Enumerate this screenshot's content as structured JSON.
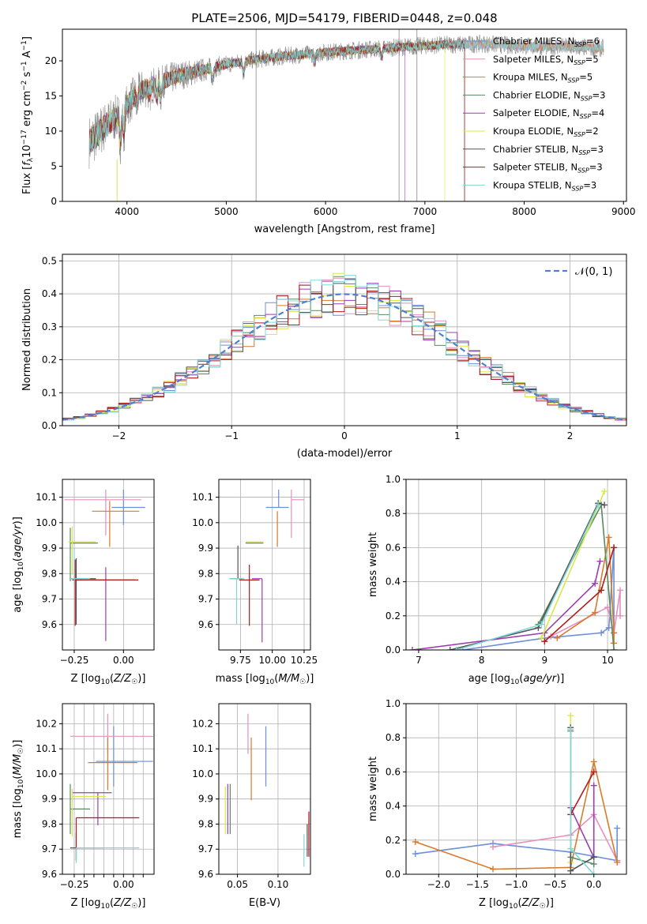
{
  "title": "PLATE=2506, MJD=54179, FIBERID=0448, z=0.048",
  "colors": {
    "Chabrier MILES": "#6b8fd8",
    "Salpeter MILES": "#e48fc0",
    "Kroupa MILES": "#d97a2a",
    "Chabrier ELODIE": "#5a8a5e",
    "Salpeter ELODIE": "#9a3fb0",
    "Kroupa ELODIE": "#d9e84a",
    "Chabrier STELIB": "#555555",
    "Salpeter STELIB": "#b01c1c",
    "Kroupa STELIB": "#7fd8d8"
  },
  "chart_data": [
    {
      "type": "line",
      "id": "spectrum",
      "xlabel": "wavelength [Angstrom, rest frame]",
      "ylabel": "Flux [f_λ10^-17 erg cm^-2 s^-1 A^-1]",
      "xlim": [
        3350,
        9030
      ],
      "ylim": [
        0,
        24.5
      ],
      "xticks": [
        4000,
        5000,
        6000,
        7000,
        8000,
        9000
      ],
      "yticks": [
        0,
        5,
        10,
        15,
        20
      ],
      "grid": false,
      "legend": "right",
      "observed_range": [
        3620,
        8800
      ],
      "series": [
        {
          "name": "Chabrier MILES",
          "nssp": "6",
          "x": [
            3620,
            3700,
            3800,
            3900,
            4000,
            4200,
            4500,
            5000,
            5500,
            6000,
            6500,
            7000,
            7400
          ]
        },
        {
          "name": "Salpeter MILES",
          "nssp": "5"
        },
        {
          "name": "Kroupa MILES",
          "nssp": "5"
        },
        {
          "name": "Chabrier ELODIE",
          "nssp": "3"
        },
        {
          "name": "Salpeter ELODIE",
          "nssp": "4"
        },
        {
          "name": "Kroupa ELODIE",
          "nssp": "2"
        },
        {
          "name": "Chabrier STELIB",
          "nssp": "3"
        },
        {
          "name": "Salpeter STELIB",
          "nssp": "3"
        },
        {
          "name": "Kroupa STELIB",
          "nssp": "3"
        }
      ],
      "continuum": {
        "x": [
          3620,
          3700,
          3800,
          3900,
          4000,
          4100,
          4300,
          4500,
          4800,
          5000,
          5300,
          5600,
          6000,
          6400,
          6800,
          7200,
          7600,
          8000,
          8400,
          8800
        ],
        "y": [
          8.5,
          9.5,
          11.0,
          12.0,
          13.5,
          15.5,
          16.8,
          17.8,
          18.8,
          19.5,
          20.2,
          20.7,
          21.2,
          21.6,
          22.0,
          22.3,
          22.4,
          22.1,
          22.0,
          21.8
        ]
      },
      "model_end": {
        "x": [
          6800,
          7200,
          7400,
          7420
        ],
        "names": [
          "Salpeter ELODIE",
          "Kroupa ELODIE",
          "Salpeter STELIB",
          "Salpeter STELIB"
        ]
      }
    },
    {
      "type": "histogram",
      "id": "residuals",
      "xlabel": "(data-model)/error",
      "ylabel": "Normed distribution",
      "xlim": [
        -2.5,
        2.5
      ],
      "ylim": [
        0,
        0.52
      ],
      "xticks": [
        -2,
        -1,
        0,
        1,
        2
      ],
      "yticks": [
        0.0,
        0.1,
        0.2,
        0.3,
        0.4,
        0.5
      ],
      "grid": true,
      "legend": "top-right",
      "legend_label": "𝒩(0, 1)",
      "bin_width": 0.1,
      "bin_start": -2.5
    },
    {
      "type": "scatter",
      "id": "age-vs-Z",
      "xlabel": "Z [log10(Z/Z☉)]",
      "ylabel": "age [log10(age/yr)]",
      "xlim": [
        -0.31,
        0.155
      ],
      "ylim": [
        9.5,
        10.17
      ],
      "xticks": [
        -0.25,
        0.0
      ],
      "yticks": [
        9.6,
        9.7,
        9.8,
        9.9,
        10.0,
        10.1
      ],
      "grid": true,
      "points": [
        {
          "name": "Chabrier MILES",
          "x": 0.0,
          "y": 10.06,
          "xerr": [
            0.06,
            0.11
          ],
          "yerr": [
            0.07,
            0.07
          ]
        },
        {
          "name": "Salpeter MILES",
          "x": -0.09,
          "y": 10.09,
          "xerr": [
            0.21,
            0.18
          ],
          "yerr": [
            0.14,
            0.04
          ]
        },
        {
          "name": "Kroupa MILES",
          "x": -0.07,
          "y": 10.045,
          "xerr": [
            0.09,
            0.15
          ],
          "yerr": [
            0.14,
            0.04
          ]
        },
        {
          "name": "Chabrier ELODIE",
          "x": -0.27,
          "y": 9.92,
          "xerr": [
            0.0,
            0.14
          ],
          "yerr": [
            0.15,
            0.06
          ]
        },
        {
          "name": "Salpeter ELODIE",
          "x": -0.09,
          "y": 9.775,
          "xerr": [
            0.16,
            0.15
          ],
          "yerr": [
            0.24,
            0.05
          ]
        },
        {
          "name": "Kroupa ELODIE",
          "x": -0.26,
          "y": 9.925,
          "xerr": [
            0.02,
            0.12
          ],
          "yerr": [
            0.13,
            0.06
          ]
        },
        {
          "name": "Chabrier STELIB",
          "x": -0.24,
          "y": 9.78,
          "xerr": [
            0.03,
            0.1
          ],
          "yerr": [
            0.18,
            0.08
          ]
        },
        {
          "name": "Salpeter STELIB",
          "x": -0.245,
          "y": 9.775,
          "xerr": [
            0.015,
            0.32
          ],
          "yerr": [
            0.18,
            0.08
          ]
        },
        {
          "name": "Kroupa STELIB",
          "x": -0.25,
          "y": 9.78,
          "xerr": [
            0.02,
            0.08
          ],
          "yerr": [
            0.02,
            0.12
          ]
        }
      ]
    },
    {
      "type": "scatter",
      "id": "age-vs-mass",
      "xlabel": "mass [log10(M/M☉)]",
      "ylabel": "",
      "xlim": [
        9.58,
        10.3
      ],
      "ylim": [
        9.5,
        10.17
      ],
      "xticks": [
        9.75,
        10.0,
        10.25
      ],
      "yticks": [
        9.6,
        9.7,
        9.8,
        9.9,
        10.0,
        10.1
      ],
      "grid": true,
      "points": [
        {
          "name": "Chabrier MILES",
          "x": 10.05,
          "y": 10.06,
          "xerr": [
            0.1,
            0.08
          ],
          "yerr": [
            0.0,
            0.07
          ]
        },
        {
          "name": "Salpeter MILES",
          "x": 10.15,
          "y": 10.09,
          "xerr": [
            0.0,
            0.1
          ],
          "yerr": [
            0.15,
            0.04
          ]
        },
        {
          "name": "Kroupa MILES",
          "x": 10.04,
          "y": 10.045,
          "xerr": [
            0.0,
            0.0
          ],
          "yerr": [
            0.14,
            0.0
          ]
        },
        {
          "name": "Chabrier ELODIE",
          "x": 9.86,
          "y": 9.92,
          "xerr": [
            0.07,
            0.07
          ],
          "yerr": [
            0.0,
            0.0
          ]
        },
        {
          "name": "Salpeter ELODIE",
          "x": 9.92,
          "y": 9.78,
          "xerr": [
            0.08,
            0.0
          ],
          "yerr": [
            0.25,
            0.0
          ]
        },
        {
          "name": "Kroupa ELODIE",
          "x": 9.86,
          "y": 9.925,
          "xerr": [
            0.07,
            0.07
          ],
          "yerr": [
            0.0,
            0.0
          ]
        },
        {
          "name": "Chabrier STELIB",
          "x": 9.73,
          "y": 9.78,
          "xerr": [
            0.06,
            0.04
          ],
          "yerr": [
            0.0,
            0.13
          ]
        },
        {
          "name": "Salpeter STELIB",
          "x": 9.82,
          "y": 9.775,
          "xerr": [
            0.08,
            0.08
          ],
          "yerr": [
            0.18,
            0.06
          ]
        },
        {
          "name": "Kroupa STELIB",
          "x": 9.72,
          "y": 9.78,
          "xerr": [
            0.06,
            0.06
          ],
          "yerr": [
            0.18,
            0.0
          ]
        }
      ]
    },
    {
      "type": "line",
      "id": "weight-vs-age",
      "xlabel": "age [log10(age/yr)]",
      "ylabel": "mass weight",
      "xlim": [
        6.8,
        10.3
      ],
      "ylim": [
        0,
        1.0
      ],
      "xticks": [
        7,
        8,
        9,
        10
      ],
      "yticks": [
        0.0,
        0.2,
        0.4,
        0.6,
        0.8,
        1.0
      ],
      "grid": true,
      "series": [
        {
          "name": "Chabrier MILES",
          "x": [
            7.7,
            9.0,
            9.9,
            10.02,
            10.1,
            10.1
          ],
          "y": [
            0.0,
            0.07,
            0.1,
            0.13,
            0.6,
            0.1
          ]
        },
        {
          "name": "Salpeter MILES",
          "x": [
            9.1,
            10.0,
            10.1,
            10.2,
            10.2
          ],
          "y": [
            0.08,
            0.25,
            0.1,
            0.35,
            0.2
          ]
        },
        {
          "name": "Kroupa MILES",
          "x": [
            9.2,
            9.8,
            10.02,
            10.1,
            10.1
          ],
          "y": [
            0.07,
            0.22,
            0.66,
            0.1,
            0.04
          ]
        },
        {
          "name": "Chabrier ELODIE",
          "x": [
            8.9,
            9.9,
            10.1
          ],
          "y": [
            0.15,
            0.85,
            0.0
          ]
        },
        {
          "name": "Salpeter ELODIE",
          "x": [
            6.9,
            9.0,
            9.8,
            9.88
          ],
          "y": [
            0.0,
            0.1,
            0.39,
            0.52
          ]
        },
        {
          "name": "Kroupa ELODIE",
          "x": [
            8.95,
            9.95
          ],
          "y": [
            0.07,
            0.93
          ]
        },
        {
          "name": "Chabrier STELIB",
          "x": [
            7.5,
            8.9,
            9.85,
            9.95
          ],
          "y": [
            0.0,
            0.13,
            0.86,
            0.85
          ]
        },
        {
          "name": "Salpeter STELIB",
          "x": [
            9.0,
            9.9,
            10.1
          ],
          "y": [
            0.05,
            0.35,
            0.6
          ]
        },
        {
          "name": "Kroupa STELIB",
          "x": [
            7.6,
            8.95,
            9.85
          ],
          "y": [
            0.0,
            0.15,
            0.85
          ]
        }
      ]
    },
    {
      "type": "scatter",
      "id": "mass-vs-Z",
      "xlabel": "Z [log10(Z/Z☉)]",
      "ylabel": "mass [log10(M/M☉)]",
      "xlim": [
        -0.31,
        0.155
      ],
      "ylim": [
        9.6,
        10.28
      ],
      "xticks": [
        -0.25,
        -0.2,
        -0.15,
        -0.1,
        -0.05,
        0.0,
        0.05,
        0.1
      ],
      "xtick_labels": [
        "−0.25",
        "",
        "",
        "",
        "",
        "0.00",
        "",
        ""
      ],
      "yticks": [
        9.6,
        9.7,
        9.8,
        9.9,
        10.0,
        10.1,
        10.2
      ],
      "grid": true,
      "points": [
        {
          "name": "Chabrier MILES",
          "x": -0.05,
          "y": 10.05,
          "xerr": [
            0.09,
            0.2
          ],
          "yerr": [
            0.1,
            0.14
          ]
        },
        {
          "name": "Salpeter MILES",
          "x": -0.08,
          "y": 10.15,
          "xerr": [
            0.19,
            0.23
          ],
          "yerr": [
            0.07,
            0.09
          ]
        },
        {
          "name": "Kroupa MILES",
          "x": -0.08,
          "y": 10.045,
          "xerr": [
            0.1,
            0.15
          ],
          "yerr": [
            0.11,
            0.1
          ]
        },
        {
          "name": "Chabrier ELODIE",
          "x": -0.27,
          "y": 9.86,
          "xerr": [
            0.0,
            0.1
          ],
          "yerr": [
            0.1,
            0.1
          ]
        },
        {
          "name": "Salpeter ELODIE",
          "x": -0.13,
          "y": 9.925,
          "xerr": [
            0.13,
            0.07
          ],
          "yerr": [
            0.13,
            0.0
          ]
        },
        {
          "name": "Kroupa ELODIE",
          "x": -0.26,
          "y": 9.91,
          "xerr": [
            0.0,
            0.17
          ],
          "yerr": [
            0.16,
            0.03
          ]
        },
        {
          "name": "Chabrier STELIB",
          "x": -0.24,
          "y": 9.705,
          "xerr": [
            0.03,
            0.14
          ],
          "yerr": [
            0.05,
            0.06
          ]
        },
        {
          "name": "Salpeter STELIB",
          "x": -0.24,
          "y": 9.825,
          "xerr": [
            0.0,
            0.32
          ],
          "yerr": [
            0.17,
            0.0
          ]
        },
        {
          "name": "Kroupa STELIB",
          "x": -0.24,
          "y": 9.705,
          "xerr": [
            0.0,
            0.32
          ],
          "yerr": [
            0.06,
            0.0
          ]
        }
      ]
    },
    {
      "type": "scatter",
      "id": "mass-vs-ebv",
      "xlabel": "E(B-V)",
      "ylabel": "",
      "xlim": [
        0.027,
        0.14
      ],
      "ylim": [
        9.6,
        10.28
      ],
      "xticks": [
        0.05,
        0.1
      ],
      "yticks": [
        9.6,
        9.7,
        9.8,
        9.9,
        10.0,
        10.1,
        10.2
      ],
      "grid": true,
      "points": [
        {
          "name": "Chabrier MILES",
          "x": 0.085,
          "y": 10.05,
          "yerr": [
            0.1,
            0.14
          ]
        },
        {
          "name": "Salpeter MILES",
          "x": 0.063,
          "y": 10.15,
          "yerr": [
            0.07,
            0.09
          ]
        },
        {
          "name": "Kroupa MILES",
          "x": 0.067,
          "y": 10.045,
          "yerr": [
            0.15,
            0.1
          ]
        },
        {
          "name": "Chabrier ELODIE",
          "x": 0.041,
          "y": 9.86,
          "yerr": [
            0.1,
            0.1
          ]
        },
        {
          "name": "Salpeter ELODIE",
          "x": 0.038,
          "y": 9.86,
          "yerr": [
            0.1,
            0.1
          ]
        },
        {
          "name": "Kroupa ELODIE",
          "x": 0.035,
          "y": 9.87,
          "yerr": [
            0.11,
            0.08
          ]
        },
        {
          "name": "Chabrier STELIB",
          "x": 0.136,
          "y": 9.74,
          "yerr": [
            0.07,
            0.06
          ]
        },
        {
          "name": "Salpeter STELIB",
          "x": 0.138,
          "y": 9.77,
          "yerr": [
            0.1,
            0.08
          ]
        },
        {
          "name": "Kroupa STELIB",
          "x": 0.132,
          "y": 9.7,
          "yerr": [
            0.07,
            0.06
          ]
        }
      ]
    },
    {
      "type": "line",
      "id": "weight-vs-Z",
      "xlabel": "Z [log10(Z/Z☉)]",
      "ylabel": "mass weight",
      "xlim": [
        -2.42,
        0.42
      ],
      "ylim": [
        0,
        1.0
      ],
      "xticks": [
        -2.0,
        -1.5,
        -1.0,
        -0.5,
        0.0
      ],
      "yticks": [
        0.0,
        0.2,
        0.4,
        0.6,
        0.8,
        1.0
      ],
      "grid": true,
      "series": [
        {
          "name": "Chabrier MILES",
          "x": [
            -2.3,
            -1.3,
            -0.3,
            0.3,
            0.3
          ],
          "y": [
            0.12,
            0.18,
            0.13,
            0.08,
            0.27
          ]
        },
        {
          "name": "Salpeter MILES",
          "x": [
            -1.3,
            -0.3,
            0.0,
            0.3
          ],
          "y": [
            0.16,
            0.23,
            0.35,
            0.08
          ]
        },
        {
          "name": "Kroupa MILES",
          "x": [
            -2.3,
            -1.3,
            -0.3,
            0.0,
            0.3
          ],
          "y": [
            0.19,
            0.03,
            0.04,
            0.66,
            0.07
          ]
        },
        {
          "name": "Chabrier ELODIE",
          "x": [
            -0.3,
            -0.3,
            0.0
          ],
          "y": [
            0.84,
            0.1,
            0.06
          ]
        },
        {
          "name": "Salpeter ELODIE",
          "x": [
            -0.3,
            0.0,
            0.0
          ],
          "y": [
            0.39,
            0.1,
            0.52
          ]
        },
        {
          "name": "Kroupa ELODIE",
          "x": [
            -0.3,
            -0.3
          ],
          "y": [
            0.93,
            0.07
          ]
        },
        {
          "name": "Chabrier STELIB",
          "x": [
            -0.3,
            -0.3,
            0.0
          ],
          "y": [
            0.86,
            0.02,
            0.1
          ]
        },
        {
          "name": "Salpeter STELIB",
          "x": [
            -0.3,
            0.0
          ],
          "y": [
            0.35,
            0.6
          ]
        },
        {
          "name": "Kroupa STELIB",
          "x": [
            -0.3,
            -0.3,
            0.0
          ],
          "y": [
            0.85,
            0.15,
            0.0
          ]
        }
      ]
    }
  ]
}
